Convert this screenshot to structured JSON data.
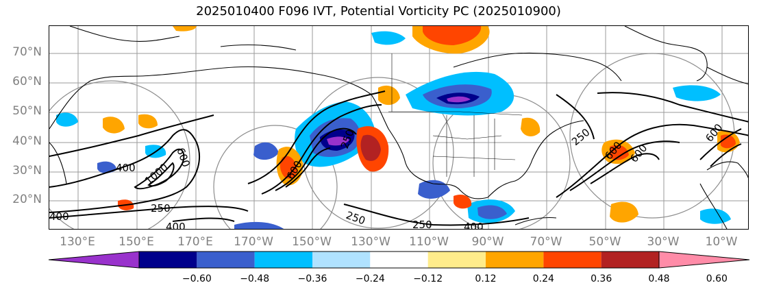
{
  "title": "2025010400 F096 IVT, Potential Vorticity PC (2025010900)",
  "lat_labels": [
    "70°N",
    "60°N",
    "50°N",
    "40°N",
    "30°N",
    "20°N"
  ],
  "lon_labels": [
    "130°E",
    "150°E",
    "170°E",
    "170°W",
    "150°W",
    "130°W",
    "110°W",
    "90°W",
    "70°W",
    "50°W",
    "30°W",
    "10°W"
  ],
  "contour_labels": [
    "400",
    "250",
    "400",
    "400",
    "1000",
    "600",
    "250",
    "250",
    "250",
    "400",
    "600",
    "250",
    "600",
    "600",
    "600"
  ],
  "colorbar": {
    "ticks": [
      "−0.60",
      "−0.48",
      "−0.36",
      "−0.24",
      "−0.12",
      "0.12",
      "0.24",
      "0.36",
      "0.48",
      "0.60"
    ],
    "colors": [
      "#9932cc",
      "#00008b",
      "#3a5fcd",
      "#00bfff",
      "#b0e2ff",
      "#ffffff",
      "#ffec8b",
      "#ffa500",
      "#ff4500",
      "#b22222",
      "#ff8ca8"
    ]
  },
  "colors": {
    "grid": "#9a9a9a",
    "coast": "#000000",
    "contour": "#000000",
    "circle": "#8c8c8c"
  }
}
